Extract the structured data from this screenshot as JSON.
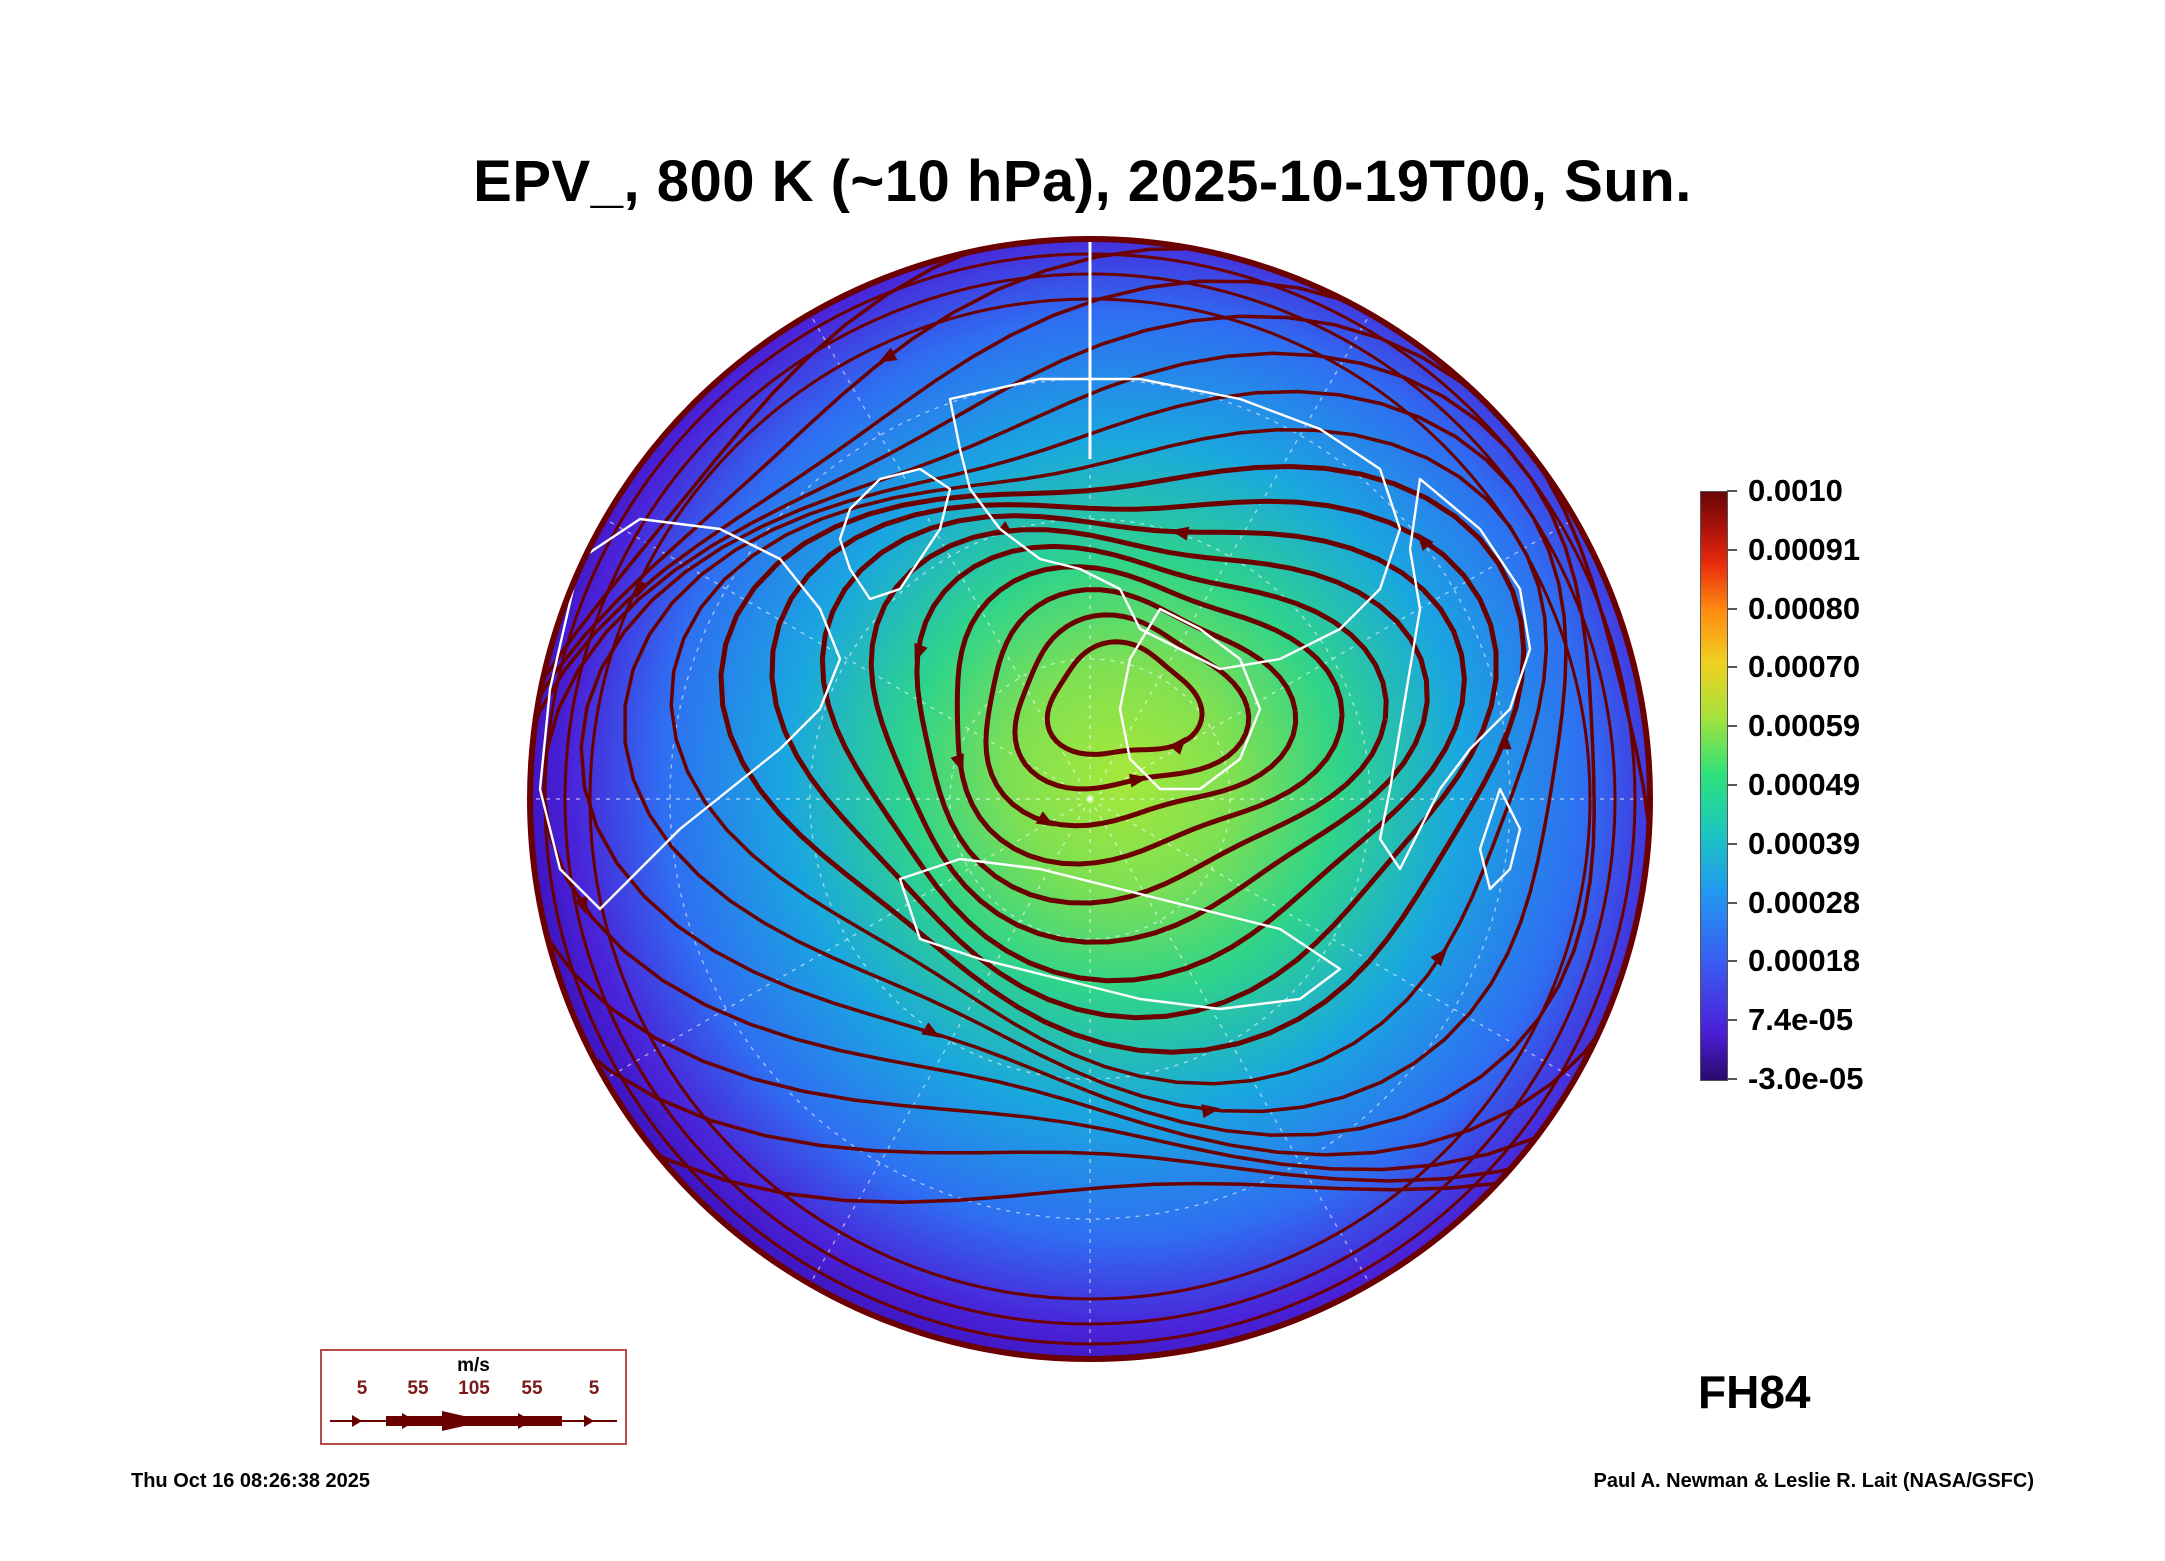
{
  "title": "EPV_, 800 K (~10 hPa), 2025-10-19T00, Sun.",
  "colorbar": {
    "labels": [
      "0.0010",
      "0.00091",
      "0.00080",
      "0.00070",
      "0.00059",
      "0.00049",
      "0.00039",
      "0.00028",
      "0.00018",
      "7.4e-05",
      "-3.0e-05"
    ],
    "colors": [
      "#6a0606",
      "#a8120a",
      "#e82a0c",
      "#ff8a10",
      "#f0d020",
      "#a8e23a",
      "#2ee27a",
      "#1cc6c0",
      "#2199f0",
      "#3a5cf2",
      "#2b0a6e"
    ]
  },
  "forecast_hour": "FH84",
  "wind_legend": {
    "unit": "m/s",
    "speeds": [
      "5",
      "55",
      "105",
      "55",
      "5"
    ],
    "arrow_color": "#6b0000"
  },
  "footer": {
    "timestamp": "Thu Oct 16 08:26:38 2025",
    "credit": "Paul A. Newman & Leslie R. Lait (NASA/GSFC)"
  },
  "map": {
    "projection": "orthographic (northern polar)",
    "field_colors": {
      "edge": "#4a22d8",
      "mid": "#2a8ef0",
      "core": "#8ee04a"
    },
    "streamline_color": "#6b0000",
    "coast_color": "#ffffff"
  }
}
